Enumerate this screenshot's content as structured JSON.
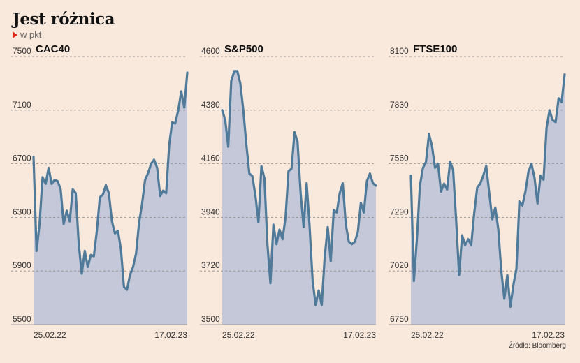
{
  "title": "Jest różnica",
  "subtitle": "w pkt",
  "source": "Źródło: Bloomberg",
  "colors": {
    "line": "#4f7a99",
    "area": "#c4c8d8",
    "background": "#f9e8dc",
    "marker": "#e0261d"
  },
  "chart_data": [
    {
      "type": "area",
      "title": "CAC40",
      "ylim": [
        5500,
        7500
      ],
      "yticks": [
        5500,
        5900,
        6300,
        6700,
        7100,
        7500
      ],
      "xlabels": [
        "25.02.22",
        "17.02.23"
      ],
      "values": [
        6750,
        6050,
        6250,
        6600,
        6550,
        6670,
        6550,
        6580,
        6570,
        6510,
        6250,
        6350,
        6270,
        6510,
        6480,
        6100,
        5880,
        6050,
        5930,
        6020,
        6010,
        6200,
        6450,
        6470,
        6540,
        6480,
        6270,
        6180,
        6200,
        6060,
        5780,
        5760,
        5870,
        5930,
        6030,
        6260,
        6400,
        6580,
        6630,
        6700,
        6730,
        6670,
        6460,
        6500,
        6480,
        6840,
        7010,
        7000,
        7100,
        7240,
        7120,
        7380
      ]
    },
    {
      "type": "area",
      "title": "S&P500",
      "ylim": [
        3500,
        4600
      ],
      "yticks": [
        3500,
        3720,
        3940,
        4160,
        4380,
        4600
      ],
      "xlabels": [
        "25.02.22",
        "17.02.23"
      ],
      "values": [
        4380,
        4340,
        4230,
        4500,
        4540,
        4540,
        4490,
        4380,
        4240,
        4120,
        4110,
        4030,
        3920,
        4150,
        4100,
        3830,
        3670,
        3910,
        3830,
        3890,
        3850,
        3940,
        4130,
        4140,
        4290,
        4250,
        4040,
        3900,
        4080,
        3900,
        3680,
        3580,
        3640,
        3580,
        3780,
        3900,
        3760,
        3970,
        3960,
        4040,
        4080,
        3910,
        3840,
        3830,
        3840,
        3880,
        4000,
        3960,
        4090,
        4120,
        4080,
        4070
      ]
    },
    {
      "type": "area",
      "title": "FTSE100",
      "ylim": [
        6750,
        8100
      ],
      "yticks": [
        6750,
        7020,
        7290,
        7560,
        7830,
        8100
      ],
      "xlabels": [
        "25.02.22",
        "17.02.23"
      ],
      "values": [
        7500,
        6970,
        7180,
        7450,
        7540,
        7570,
        7710,
        7650,
        7540,
        7560,
        7420,
        7460,
        7430,
        7570,
        7530,
        7280,
        7000,
        7200,
        7150,
        7180,
        7150,
        7310,
        7440,
        7460,
        7500,
        7550,
        7410,
        7280,
        7340,
        7230,
        7020,
        6880,
        7000,
        6840,
        6950,
        7030,
        7370,
        7350,
        7420,
        7520,
        7560,
        7490,
        7360,
        7500,
        7480,
        7740,
        7830,
        7780,
        7770,
        7890,
        7870,
        8010
      ]
    }
  ]
}
